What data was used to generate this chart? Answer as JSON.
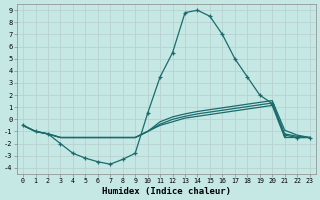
{
  "background_color": "#c5e8e5",
  "grid_color": "#b8cece",
  "line_color": "#1a6b6b",
  "xlabel": "Humidex (Indice chaleur)",
  "xlim": [
    -0.5,
    23.5
  ],
  "ylim": [
    -4.5,
    9.5
  ],
  "xtick_vals": [
    0,
    1,
    2,
    3,
    4,
    5,
    6,
    7,
    8,
    9,
    10,
    11,
    12,
    13,
    14,
    15,
    16,
    17,
    18,
    19,
    20,
    21,
    22,
    23
  ],
  "ytick_vals": [
    -4,
    -3,
    -2,
    -1,
    0,
    1,
    2,
    3,
    4,
    5,
    6,
    7,
    8,
    9
  ],
  "curve_main_x": [
    0,
    1,
    2,
    3,
    4,
    5,
    6,
    7,
    8,
    9,
    10,
    11,
    12,
    13,
    14,
    15,
    16,
    17,
    18,
    19,
    20,
    21,
    22,
    23
  ],
  "curve_main_y": [
    -0.5,
    -1.0,
    -1.2,
    -2.0,
    -2.8,
    -3.2,
    -3.5,
    -3.7,
    -3.3,
    -2.8,
    0.5,
    3.5,
    5.5,
    8.8,
    9.0,
    8.5,
    7.0,
    5.0,
    3.5,
    2.0,
    1.3,
    -1.3,
    -1.5,
    -1.5
  ],
  "curve_a_x": [
    0,
    1,
    2,
    3,
    4,
    5,
    6,
    7,
    8,
    9,
    10,
    11,
    12,
    13,
    14,
    15,
    16,
    17,
    18,
    19,
    20,
    21,
    22,
    23
  ],
  "curve_a_y": [
    -0.5,
    -1.0,
    -1.2,
    -1.5,
    -1.5,
    -1.5,
    -1.5,
    -1.5,
    -1.5,
    -1.5,
    -1.0,
    -0.5,
    -0.2,
    0.1,
    0.25,
    0.4,
    0.55,
    0.7,
    0.85,
    1.0,
    1.15,
    -1.5,
    -1.5,
    -1.5
  ],
  "curve_b_x": [
    0,
    1,
    2,
    3,
    4,
    5,
    6,
    7,
    8,
    9,
    10,
    11,
    12,
    13,
    14,
    15,
    16,
    17,
    18,
    19,
    20,
    21,
    22,
    23
  ],
  "curve_b_y": [
    -0.5,
    -1.0,
    -1.2,
    -1.5,
    -1.5,
    -1.5,
    -1.5,
    -1.5,
    -1.5,
    -1.5,
    -1.0,
    -0.4,
    0.0,
    0.25,
    0.45,
    0.6,
    0.75,
    0.9,
    1.05,
    1.2,
    1.35,
    -1.2,
    -1.4,
    -1.5
  ],
  "curve_c_x": [
    0,
    1,
    2,
    3,
    4,
    5,
    6,
    7,
    8,
    9,
    10,
    11,
    12,
    13,
    14,
    15,
    16,
    17,
    18,
    19,
    20,
    21,
    22,
    23
  ],
  "curve_c_y": [
    -0.5,
    -1.0,
    -1.2,
    -1.5,
    -1.5,
    -1.5,
    -1.5,
    -1.5,
    -1.5,
    -1.5,
    -1.0,
    -0.2,
    0.2,
    0.45,
    0.65,
    0.8,
    0.95,
    1.1,
    1.25,
    1.4,
    1.55,
    -0.9,
    -1.3,
    -1.5
  ]
}
